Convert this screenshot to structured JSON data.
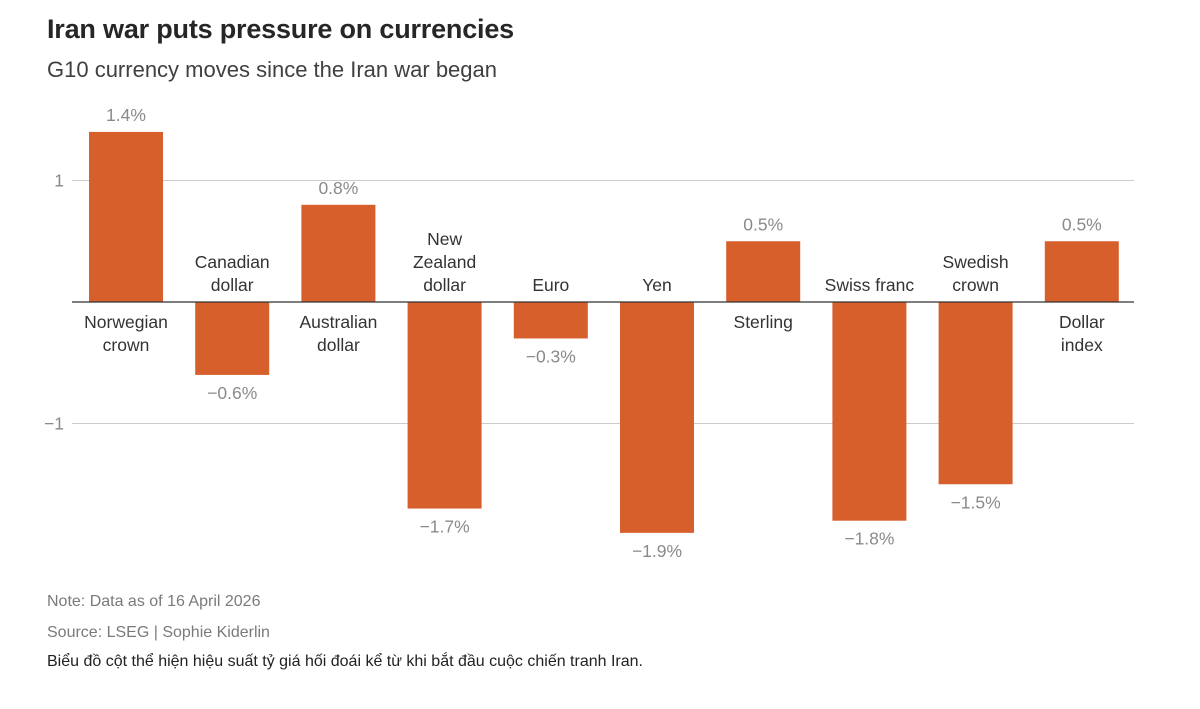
{
  "chart_data": {
    "type": "bar",
    "title": "Iran war puts pressure on currencies",
    "subtitle": "G10 currency moves since the Iran war began",
    "categories": [
      [
        "Norwegian",
        "crown"
      ],
      [
        "Canadian",
        "dollar"
      ],
      [
        "Australian",
        "dollar"
      ],
      [
        "New",
        "Zealand",
        "dollar"
      ],
      [
        "Euro"
      ],
      [
        "Yen"
      ],
      [
        "Sterling"
      ],
      [
        "Swiss franc"
      ],
      [
        "Swedish",
        "crown"
      ],
      [
        "Dollar",
        "index"
      ]
    ],
    "values": [
      1.4,
      -0.6,
      0.8,
      -1.7,
      -0.3,
      -1.9,
      0.5,
      -1.8,
      -1.5,
      0.5
    ],
    "value_labels": [
      "1.4%",
      "−0.6%",
      "0.8%",
      "−1.7%",
      "−0.3%",
      "−1.9%",
      "0.5%",
      "−1.8%",
      "−1.5%",
      "0.5%"
    ],
    "yticks": [
      1,
      -1
    ],
    "ytick_labels": [
      "1",
      "−1"
    ],
    "ylim": [
      -2.1,
      1.6
    ],
    "grid": true,
    "bar_color": "#d65f2b",
    "gridline_color": "#cccccc",
    "axis_color": "#333333",
    "label_color": "#8a8a8a"
  },
  "footer": {
    "note": "Note: Data as of 16 April 2026",
    "source": "Source: LSEG | Sophie Kiderlin",
    "caption": "Biểu đồ cột thể hiện hiệu suất tỷ giá hối đoái kể từ khi bắt đầu cuộc chiến tranh Iran."
  }
}
